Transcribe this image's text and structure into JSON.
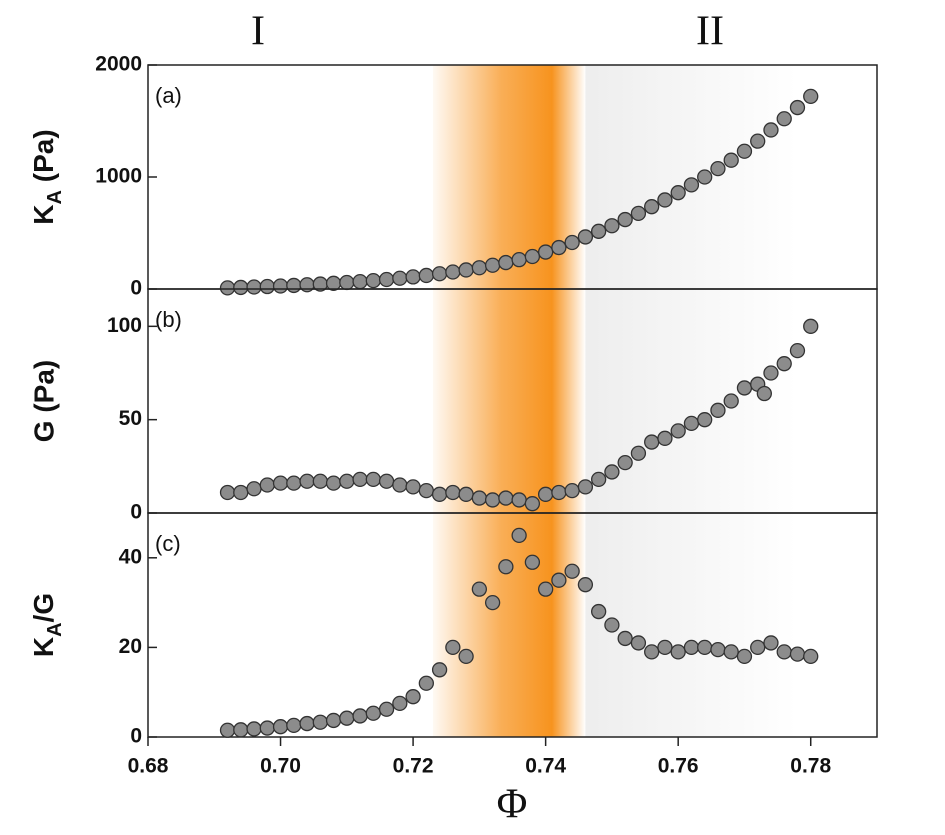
{
  "annotations": [
    "I",
    "II"
  ],
  "xlabel": "Φ",
  "shading": [
    {
      "xlim": [
        0.723,
        0.746
      ],
      "color": "#f7931e"
    },
    {
      "xlim": [
        0.746,
        0.778
      ],
      "color": "#e6e6e6"
    }
  ],
  "chart_data": [
    {
      "type": "scatter",
      "panel_label": "(a)",
      "ylabel": {
        "base": "K",
        "sub": "A",
        "rest": " (Pa)"
      },
      "color": "#8c8c8c",
      "xlim": [
        0.68,
        0.79
      ],
      "ylim": [
        0,
        2000
      ],
      "yticks": [
        0,
        1000,
        2000
      ],
      "x": [
        0.692,
        0.694,
        0.696,
        0.698,
        0.7,
        0.702,
        0.704,
        0.706,
        0.708,
        0.71,
        0.712,
        0.714,
        0.716,
        0.718,
        0.72,
        0.722,
        0.724,
        0.726,
        0.728,
        0.73,
        0.732,
        0.734,
        0.736,
        0.738,
        0.74,
        0.742,
        0.744,
        0.746,
        0.748,
        0.75,
        0.752,
        0.754,
        0.756,
        0.758,
        0.76,
        0.762,
        0.764,
        0.766,
        0.768,
        0.77,
        0.772,
        0.774,
        0.776,
        0.778,
        0.78
      ],
      "values": [
        10,
        14,
        18,
        22,
        27,
        32,
        38,
        44,
        51,
        58,
        66,
        75,
        85,
        96,
        108,
        121,
        136,
        152,
        170,
        190,
        212,
        236,
        262,
        290,
        330,
        370,
        415,
        465,
        515,
        565,
        620,
        675,
        735,
        795,
        860,
        930,
        1000,
        1075,
        1150,
        1230,
        1320,
        1420,
        1520,
        1620,
        1720
      ]
    },
    {
      "type": "scatter",
      "panel_label": "(b)",
      "ylabel": "G (Pa)",
      "color": "#8c8c8c",
      "xlim": [
        0.68,
        0.79
      ],
      "ylim": [
        0,
        120
      ],
      "yticks": [
        0,
        50,
        100
      ],
      "x": [
        0.692,
        0.694,
        0.696,
        0.698,
        0.7,
        0.702,
        0.704,
        0.706,
        0.708,
        0.71,
        0.712,
        0.714,
        0.716,
        0.718,
        0.72,
        0.722,
        0.724,
        0.726,
        0.728,
        0.73,
        0.732,
        0.734,
        0.736,
        0.738,
        0.74,
        0.742,
        0.744,
        0.746,
        0.748,
        0.75,
        0.752,
        0.754,
        0.756,
        0.758,
        0.76,
        0.762,
        0.764,
        0.766,
        0.768,
        0.77,
        0.772,
        0.773,
        0.774,
        0.776,
        0.778,
        0.78
      ],
      "values": [
        11,
        11,
        13,
        15,
        16,
        16,
        17,
        17,
        16,
        17,
        18,
        18,
        17,
        15,
        14,
        12,
        10,
        11,
        10,
        8,
        7,
        8,
        7,
        5,
        10,
        11,
        12,
        14,
        18,
        22,
        27,
        32,
        38,
        40,
        44,
        48,
        50,
        55,
        60,
        67,
        69,
        64,
        75,
        80,
        87,
        100
      ]
    },
    {
      "type": "scatter",
      "panel_label": "(c)",
      "ylabel": {
        "base": "K",
        "sub": "A",
        "rest": "/G"
      },
      "color": "#8c8c8c",
      "xlim": [
        0.68,
        0.79
      ],
      "ylim": [
        0,
        50
      ],
      "yticks": [
        0,
        20,
        40
      ],
      "xticks": [
        0.68,
        {
          "value": 0.7,
          "label": "0.70"
        },
        0.72,
        0.74,
        0.76,
        0.78
      ],
      "x": [
        0.692,
        0.694,
        0.696,
        0.698,
        0.7,
        0.702,
        0.704,
        0.706,
        0.708,
        0.71,
        0.712,
        0.714,
        0.716,
        0.718,
        0.72,
        0.722,
        0.724,
        0.726,
        0.728,
        0.73,
        0.732,
        0.734,
        0.736,
        0.738,
        0.74,
        0.742,
        0.744,
        0.746,
        0.748,
        0.75,
        0.752,
        0.754,
        0.756,
        0.758,
        0.76,
        0.762,
        0.764,
        0.766,
        0.768,
        0.77,
        0.772,
        0.774,
        0.776,
        0.778,
        0.78
      ],
      "values": [
        1.5,
        1.6,
        1.8,
        2,
        2.3,
        2.6,
        3,
        3.3,
        3.7,
        4.2,
        4.7,
        5.3,
        6.2,
        7.5,
        9,
        12,
        15,
        20,
        18,
        33,
        30,
        38,
        45,
        39,
        33,
        35,
        37,
        34,
        28,
        25,
        22,
        21,
        19,
        20,
        19,
        20,
        20,
        19.5,
        19,
        18,
        20,
        21,
        19,
        18.5,
        18
      ]
    }
  ]
}
